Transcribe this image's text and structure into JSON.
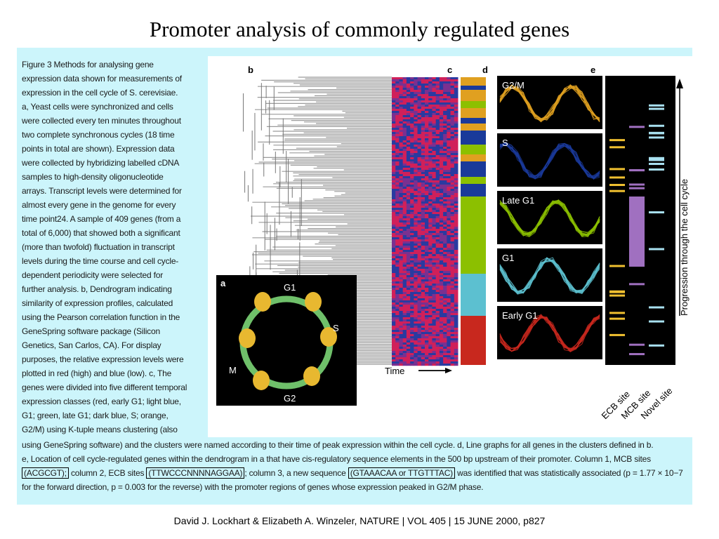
{
  "title": "Promoter analysis of commonly regulated genes",
  "caption_lines": [
    "Figure 3 Methods for analysing gene",
    "expression data shown for measurements of",
    "expression in the cell cycle of S. cerevisiae.",
    "a, Yeast cells were synchronized and cells",
    "were collected every ten minutes throughout",
    "two complete synchronous cycles (18 time",
    "points in total are shown). Expression data",
    "were collected by hybridizing labelled cDNA",
    "samples to high-density oligonucleotide",
    "arrays. Transcript levels were determined for",
    "almost every gene in the genome for every",
    "time point24. A sample of 409 genes (from a",
    "total of 6,000) that showed both a significant",
    "(more than twofold) fluctuation in transcript",
    "levels during the time course and cell cycle-",
    "dependent periodicity were selected for",
    "further analysis. b, Dendrogram indicating",
    "similarity of expression profiles, calculated",
    "using the Pearson correlation function in the",
    "GeneSpring software package (Silicon",
    "Genetics, San Carlos, CA). For display",
    "purposes, the relative expression levels were",
    "plotted in red (high) and blue (low). c, The",
    "genes were divided into five different temporal",
    "expression classes (red, early G1; light blue,",
    "G1; green, late G1; dark blue, S; orange,",
    "G2/M) using K-tuple means clustering (also"
  ],
  "caption_full": {
    "line1": "using GeneSpring software) and the clusters were named according to their time of peak expression within the cell cycle. d, Line graphs for all genes in the clusters defined in b.",
    "line2": "e, Location of cell cycle-regulated genes within the dendrogram in a that have cis-regulatory sequence elements in the 500 bp upstream of their promoter. Column 1, MCB sites",
    "line3_mcb": "(ACGCGT);",
    "line3_a": " column 2, ECB sites ",
    "line3_ecb": "(TTWCCCNNNNAGGAA)",
    "line3_b": "; column 3, a new sequence ",
    "line3_novel": "(GTAAACAA or TTGTTTAC)",
    "line3_c": " was identified that was statistically associated (p = 1.77 × 10−7",
    "line4": "for the forward direction, p = 0.003 for the reverse) with the promoter regions of genes whose expression peaked in G2/M phase."
  },
  "figure": {
    "panel_labels": {
      "a": "a",
      "b": "b",
      "c": "c",
      "d": "d",
      "e": "e"
    },
    "cycle_phases": [
      "G1",
      "S",
      "G2",
      "M"
    ],
    "time_label": "Time",
    "line_graph_classes": [
      "G2/M",
      "S",
      "Late G1",
      "G1",
      "Early G1"
    ],
    "site_labels": [
      "ECB site",
      "MCB site",
      "Novel site"
    ],
    "progression_label": "Progression through the cell cycle"
  },
  "colors": {
    "panel_bg": "#ccf5fb",
    "early_g1": "#c8281e",
    "g1": "#5cc0d0",
    "late_g1": "#8cc000",
    "s": "#1a3a9a",
    "g2m": "#e0a020",
    "ecb": "#f0c030",
    "mcb": "#a070c0",
    "novel": "#a8e0f0"
  },
  "footer": "David J. Lockhart & Elizabeth A. Winzeler, NATURE | VOL 405 | 15 JUNE 2000, p827"
}
